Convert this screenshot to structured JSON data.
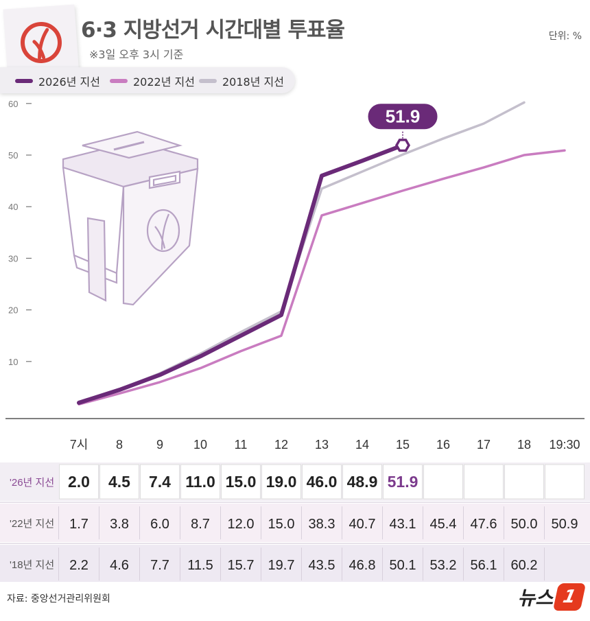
{
  "header": {
    "title": "6·3 지방선거 시간대별 투표율",
    "subtitle": "※3일 오후 3시 기준",
    "unit": "단위: %"
  },
  "legend": [
    {
      "label": "2026년 지선",
      "color": "#6a2a78"
    },
    {
      "label": "2022년 지선",
      "color": "#c97cc0"
    },
    {
      "label": "2018년 지선",
      "color": "#c4bfcc"
    }
  ],
  "callout": "51.9",
  "chart_data": {
    "type": "line",
    "categories": [
      "7시",
      "8",
      "9",
      "10",
      "11",
      "12",
      "13",
      "14",
      "15",
      "16",
      "17",
      "18",
      "19:30"
    ],
    "series": [
      {
        "name": "2026년 지선",
        "values": [
          2.0,
          4.5,
          7.4,
          11.0,
          15.0,
          19.0,
          46.0,
          48.9,
          51.9,
          null,
          null,
          null,
          null
        ]
      },
      {
        "name": "2022년 지선",
        "values": [
          1.7,
          3.8,
          6.0,
          8.7,
          12.0,
          15.0,
          38.3,
          40.7,
          43.1,
          45.4,
          47.6,
          50.0,
          50.9
        ]
      },
      {
        "name": "2018년 지선",
        "values": [
          2.2,
          4.6,
          7.7,
          11.5,
          15.7,
          19.7,
          43.5,
          46.8,
          50.1,
          53.2,
          56.1,
          60.2,
          null
        ]
      }
    ],
    "yticks": [
      "10",
      "20",
      "30",
      "40",
      "50",
      "60"
    ],
    "ylim": [
      0,
      60
    ],
    "grid": false
  },
  "table": {
    "rows": [
      {
        "label": "'26년 지선",
        "cells": [
          "2.0",
          "4.5",
          "7.4",
          "11.0",
          "15.0",
          "19.0",
          "46.0",
          "48.9",
          "51.9",
          "",
          "",
          "",
          ""
        ]
      },
      {
        "label": "'22년 지선",
        "cells": [
          "1.7",
          "3.8",
          "6.0",
          "8.7",
          "12.0",
          "15.0",
          "38.3",
          "40.7",
          "43.1",
          "45.4",
          "47.6",
          "50.0",
          "50.9"
        ]
      },
      {
        "label": "'18년 지선",
        "cells": [
          "2.2",
          "4.6",
          "7.7",
          "11.5",
          "15.7",
          "19.7",
          "43.5",
          "46.8",
          "50.1",
          "53.2",
          "56.1",
          "60.2",
          ""
        ]
      }
    ]
  },
  "footer": {
    "source": "자료: 중앙선거관리위원회",
    "brand_text": "뉴스",
    "brand_badge": "1"
  }
}
